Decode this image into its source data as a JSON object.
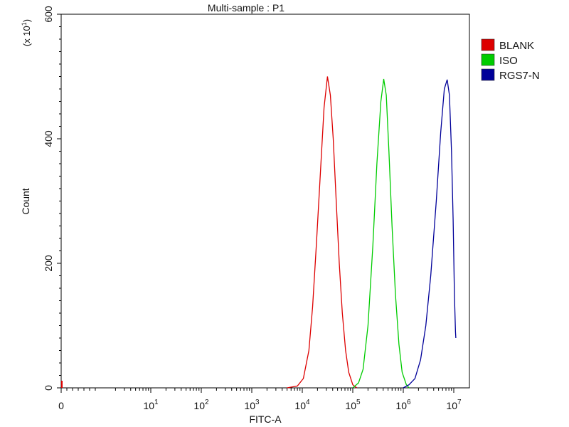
{
  "chart_data": {
    "type": "line",
    "title": "Multi-sample : P1",
    "xlabel": "FITC-A",
    "ylabel": "Count",
    "y_multiplier_label": "(x 10",
    "y_multiplier_exp": "1",
    "x_scale": "log",
    "xlim": [
      0,
      10000000
    ],
    "ylim": [
      0,
      600
    ],
    "y_unit": "count x 10",
    "x_ticks": [
      {
        "value": 0,
        "base": "0",
        "exp": ""
      },
      {
        "value": 10,
        "base": "10",
        "exp": "1"
      },
      {
        "value": 100,
        "base": "10",
        "exp": "2"
      },
      {
        "value": 1000,
        "base": "10",
        "exp": "3"
      },
      {
        "value": 10000,
        "base": "10",
        "exp": "4"
      },
      {
        "value": 100000,
        "base": "10",
        "exp": "5"
      },
      {
        "value": 1000000,
        "base": "10",
        "exp": "6"
      },
      {
        "value": 10000000,
        "base": "10",
        "exp": "7"
      }
    ],
    "y_ticks": [
      0,
      200,
      400,
      600
    ],
    "legend_position": "right",
    "series": [
      {
        "name": "BLANK",
        "color": "#dd0000",
        "points": [
          [
            5000,
            0
          ],
          [
            8000,
            3
          ],
          [
            10500,
            15
          ],
          [
            13500,
            60
          ],
          [
            16000,
            130
          ],
          [
            19000,
            230
          ],
          [
            23000,
            350
          ],
          [
            27000,
            450
          ],
          [
            31500,
            500
          ],
          [
            36000,
            470
          ],
          [
            41000,
            400
          ],
          [
            47000,
            300
          ],
          [
            54000,
            200
          ],
          [
            62000,
            120
          ],
          [
            72000,
            60
          ],
          [
            83000,
            25
          ],
          [
            100000,
            5
          ],
          [
            120000,
            0
          ]
        ]
      },
      {
        "name": "ISO",
        "color": "#00cc00",
        "points": [
          [
            100000,
            0
          ],
          [
            130000,
            8
          ],
          [
            160000,
            30
          ],
          [
            200000,
            100
          ],
          [
            250000,
            230
          ],
          [
            300000,
            360
          ],
          [
            360000,
            460
          ],
          [
            410000,
            496
          ],
          [
            460000,
            470
          ],
          [
            520000,
            380
          ],
          [
            600000,
            260
          ],
          [
            700000,
            150
          ],
          [
            820000,
            70
          ],
          [
            950000,
            25
          ],
          [
            1150000,
            5
          ],
          [
            1300000,
            0
          ]
        ]
      },
      {
        "name": "RGS7-N",
        "color": "#000099",
        "points": [
          [
            1000000,
            0
          ],
          [
            1300000,
            5
          ],
          [
            1700000,
            15
          ],
          [
            2200000,
            45
          ],
          [
            2800000,
            100
          ],
          [
            3500000,
            180
          ],
          [
            4500000,
            300
          ],
          [
            5500000,
            410
          ],
          [
            6500000,
            480
          ],
          [
            7400000,
            495
          ],
          [
            8200000,
            470
          ],
          [
            9000000,
            380
          ],
          [
            9700000,
            270
          ],
          [
            10300000,
            150
          ],
          [
            10800000,
            90
          ],
          [
            11000000,
            80
          ]
        ]
      }
    ]
  }
}
